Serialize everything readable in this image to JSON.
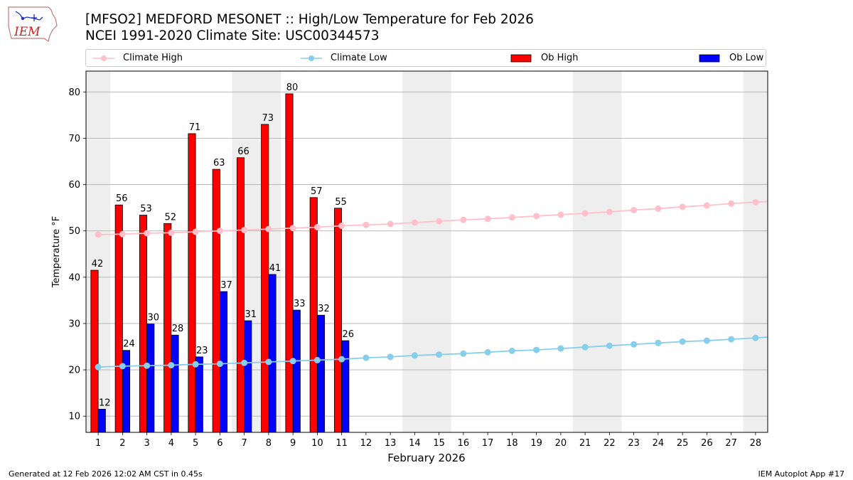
{
  "header": {
    "title_line1": "[MFSO2] MEDFORD MESONET :: High/Low Temperature for Feb 2026",
    "title_line2": "NCEI 1991-2020 Climate Site: USC00344573",
    "logo_text": "IEM"
  },
  "legend": [
    {
      "label": "Climate High",
      "color": "#ffc0cb",
      "kind": "line"
    },
    {
      "label": "Climate Low",
      "color": "#87ceeb",
      "kind": "line"
    },
    {
      "label": "Ob High",
      "color": "#ff0000",
      "kind": "bar"
    },
    {
      "label": "Ob Low",
      "color": "#0000ff",
      "kind": "bar"
    }
  ],
  "footer": {
    "generated": "Generated at 12 Feb 2026 12:02 AM CST in 0.45s",
    "app": "IEM Autoplot App #17"
  },
  "chart_data": {
    "type": "bar",
    "xlabel": "February 2026",
    "ylabel": "Temperature °F",
    "ylim": [
      6.5,
      84.5
    ],
    "xlim": [
      0.5,
      28.5
    ],
    "yticks": [
      10,
      20,
      30,
      40,
      50,
      60,
      70,
      80
    ],
    "days": [
      1,
      2,
      3,
      4,
      5,
      6,
      7,
      8,
      9,
      10,
      11,
      12,
      13,
      14,
      15,
      16,
      17,
      18,
      19,
      20,
      21,
      22,
      23,
      24,
      25,
      26,
      27,
      28
    ],
    "weekend_shading": [
      [
        0.5,
        1.5
      ],
      [
        6.5,
        8.5
      ],
      [
        13.5,
        15.5
      ],
      [
        20.5,
        22.5
      ],
      [
        27.5,
        28.5
      ]
    ],
    "grid": true,
    "series": [
      {
        "name": "Ob High",
        "color": "#ff0000",
        "type": "bar",
        "days": [
          1,
          2,
          3,
          4,
          5,
          6,
          7,
          8,
          9,
          10,
          11
        ],
        "values": [
          41.5,
          55.6,
          53.4,
          51.6,
          71.0,
          63.3,
          65.8,
          73.0,
          79.6,
          57.2,
          54.9
        ],
        "labels": [
          "42",
          "56",
          "53",
          "52",
          "71",
          "63",
          "66",
          "73",
          "80",
          "57",
          "55"
        ]
      },
      {
        "name": "Ob Low",
        "color": "#0000ff",
        "type": "bar",
        "days": [
          1,
          2,
          3,
          4,
          5,
          6,
          7,
          8,
          9,
          10,
          11
        ],
        "values": [
          11.5,
          24.2,
          29.9,
          27.5,
          22.8,
          36.9,
          30.6,
          40.6,
          32.9,
          31.8,
          26.3
        ],
        "labels": [
          "12",
          "24",
          "30",
          "28",
          "23",
          "37",
          "31",
          "41",
          "33",
          "32",
          "26"
        ]
      },
      {
        "name": "Climate High",
        "color": "#ffc0cb",
        "type": "line",
        "values": [
          49.2,
          49.3,
          49.5,
          49.6,
          49.8,
          50.0,
          50.2,
          50.4,
          50.6,
          50.8,
          51.1,
          51.3,
          51.5,
          51.8,
          52.1,
          52.4,
          52.6,
          52.9,
          53.2,
          53.5,
          53.8,
          54.1,
          54.5,
          54.8,
          55.2,
          55.5,
          55.9,
          56.2
        ]
      },
      {
        "name": "Climate Low",
        "color": "#87ceeb",
        "type": "line",
        "values": [
          20.6,
          20.8,
          20.9,
          21.0,
          21.2,
          21.3,
          21.5,
          21.7,
          21.9,
          22.1,
          22.3,
          22.6,
          22.8,
          23.1,
          23.3,
          23.5,
          23.8,
          24.1,
          24.3,
          24.6,
          24.9,
          25.2,
          25.5,
          25.8,
          26.1,
          26.3,
          26.6,
          26.9
        ]
      }
    ]
  }
}
